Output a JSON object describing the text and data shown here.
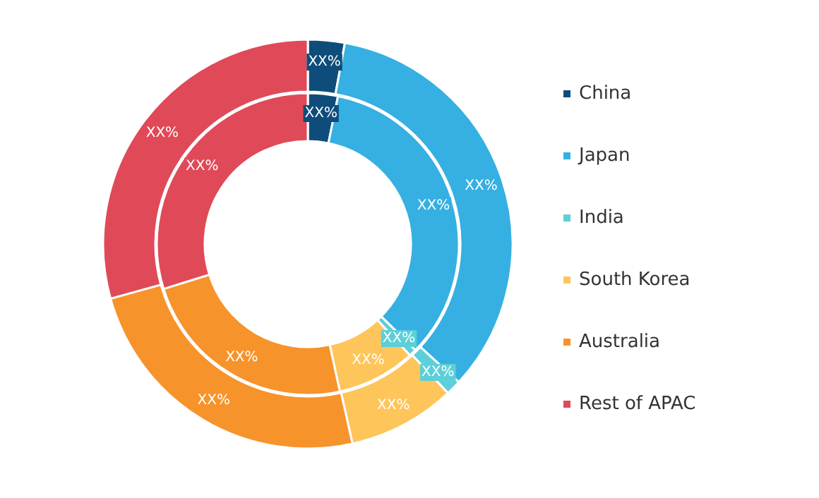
{
  "chart_data": {
    "type": "donut",
    "categories": [
      "China",
      "Japan",
      "India",
      "South Korea",
      "Australia",
      "Rest of APAC"
    ],
    "colors": [
      "#0e4d7b",
      "#36b0e2",
      "#5ccfd8",
      "#fec55a",
      "#f7932b",
      "#e04a58"
    ],
    "series": [
      {
        "values": [
          2.9,
          33.9,
          1.2,
          8.5,
          24.2,
          29.3
        ],
        "value_labels": [
          "XX%",
          "XX%",
          "XX%",
          "XX%",
          "XX%",
          "XX%"
        ]
      },
      {
        "values": [
          3.2,
          34.2,
          0.8,
          8.4,
          23.6,
          29.8
        ],
        "value_labels": [
          "XX%",
          "XX%",
          "XX%",
          "XX%",
          "XX%",
          "XX%"
        ]
      }
    ],
    "legend": "right"
  }
}
